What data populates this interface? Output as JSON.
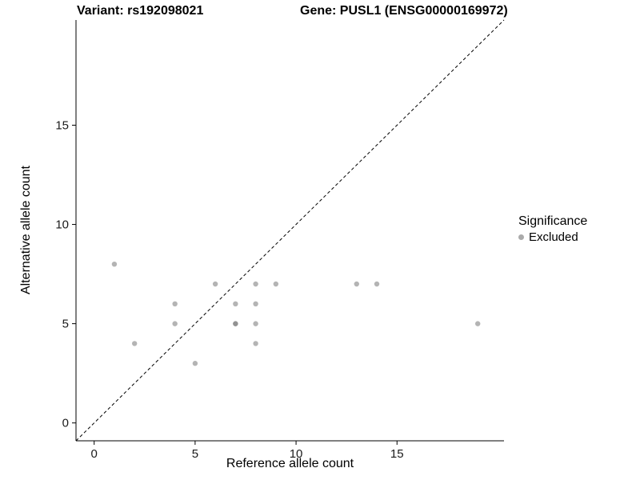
{
  "chart_data": {
    "type": "scatter",
    "title_left": "Variant: rs192098021",
    "title_right": "Gene: PUSL1 (ENSG00000169972)",
    "xlabel": "Reference allele count",
    "ylabel": "Alternative allele count",
    "xlim": [
      -0.9,
      20.3
    ],
    "ylim": [
      -0.9,
      20.3
    ],
    "x_ticks": [
      0,
      5,
      10,
      15
    ],
    "y_ticks": [
      0,
      5,
      10,
      15
    ],
    "grid": false,
    "identity_line": {
      "style": "dashed",
      "color": "#000000"
    },
    "point_color": "#777777",
    "point_opacity": 0.55,
    "series": [
      {
        "name": "Excluded",
        "color": "#777777",
        "points": [
          [
            1,
            8
          ],
          [
            2,
            4
          ],
          [
            4,
            6
          ],
          [
            4,
            5
          ],
          [
            5,
            3
          ],
          [
            6,
            7
          ],
          [
            7,
            6
          ],
          [
            7,
            5
          ],
          [
            7,
            5
          ],
          [
            8,
            7
          ],
          [
            8,
            6
          ],
          [
            8,
            5
          ],
          [
            8,
            4
          ],
          [
            9,
            7
          ],
          [
            13,
            7
          ],
          [
            14,
            7
          ],
          [
            19,
            5
          ]
        ]
      }
    ],
    "legend": {
      "title": "Significance",
      "position": "right",
      "entries": [
        {
          "label": "Excluded",
          "color": "#aaaaaa"
        }
      ]
    }
  }
}
